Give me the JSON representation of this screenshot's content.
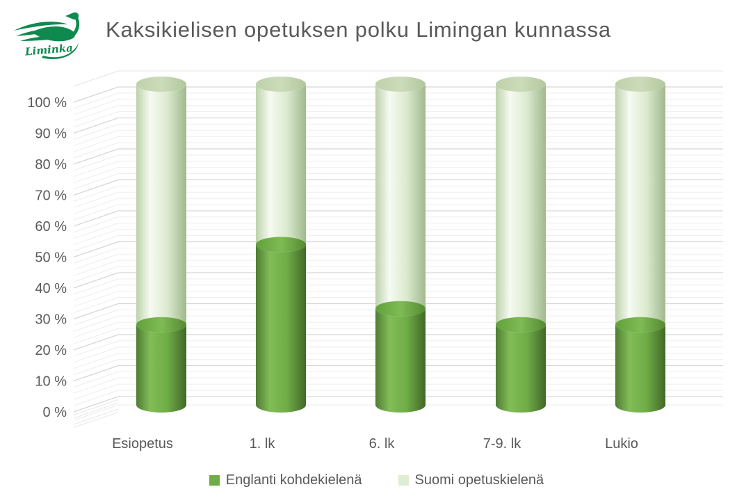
{
  "logo": {
    "text": "Liminka",
    "color": "#0f8a4f"
  },
  "title": "Kaksikielisen opetuksen polku Limingan kunnassa",
  "chart_data": {
    "type": "bar",
    "variant": "3d-cylinder-100pct-stacked",
    "title": "Kaksikielisen opetuksen polku Limingan kunnassa",
    "categories": [
      "Esiopetus",
      "1. lk",
      "6. lk",
      "7-9. lk",
      "Lukio"
    ],
    "series": [
      {
        "name": "Englanti kohdekielenä",
        "color": "#6FAD47",
        "values": [
          25,
          50,
          30,
          25,
          25
        ]
      },
      {
        "name": "Suomi opetuskielenä",
        "color": "#DFEDD3",
        "values": [
          75,
          50,
          70,
          75,
          75
        ]
      }
    ],
    "y_ticks": [
      "0 %",
      "10 %",
      "20 %",
      "30 %",
      "40 %",
      "50 %",
      "60 %",
      "70 %",
      "80 %",
      "90 %",
      "100 %"
    ],
    "ylim": [
      0,
      100
    ],
    "grid": true,
    "minor_grid_step_pct": 2,
    "legend_position": "bottom",
    "text_color": "#595959",
    "major_grid_color": "#d6d6d6",
    "minor_grid_color": "#ededed"
  }
}
